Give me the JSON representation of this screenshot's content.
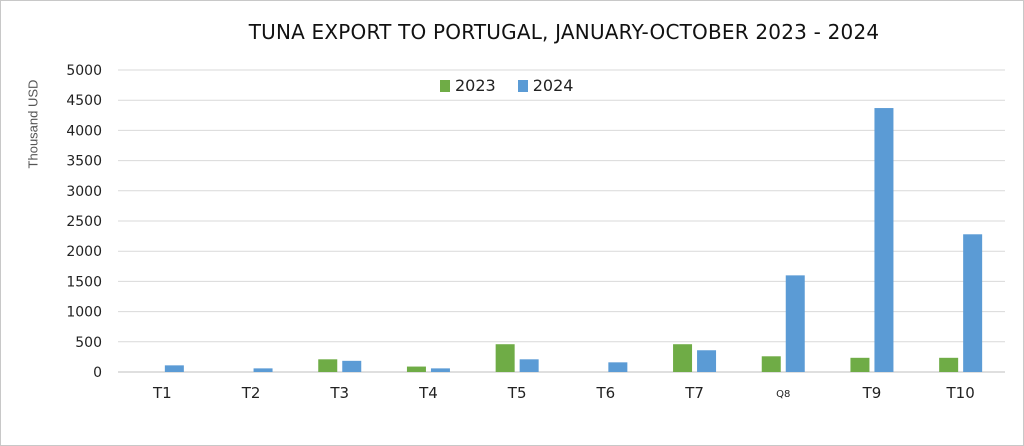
{
  "chart_data": {
    "type": "bar",
    "title": "TUNA EXPORT TO PORTUGAL, JANUARY-OCTOBER 2023 - 2024",
    "xlabel": "",
    "ylabel": "Thousand USD",
    "categories": [
      "T1",
      "T2",
      "T3",
      "T4",
      "T5",
      "T6",
      "T7",
      "Q8",
      "T9",
      "T10"
    ],
    "series": [
      {
        "name": "2023",
        "color": "#6fac46",
        "values": [
          0,
          0,
          210,
          90,
          460,
          0,
          460,
          260,
          235,
          235
        ]
      },
      {
        "name": "2024",
        "color": "#5b9bd5",
        "values": [
          110,
          60,
          185,
          60,
          210,
          160,
          360,
          1600,
          4370,
          2280
        ]
      }
    ],
    "ylim": [
      0,
      5000
    ],
    "yticks": [
      0,
      500,
      1000,
      1500,
      2000,
      2500,
      3000,
      3500,
      4000,
      4500,
      5000
    ],
    "grid": true,
    "legend": "top-center"
  }
}
